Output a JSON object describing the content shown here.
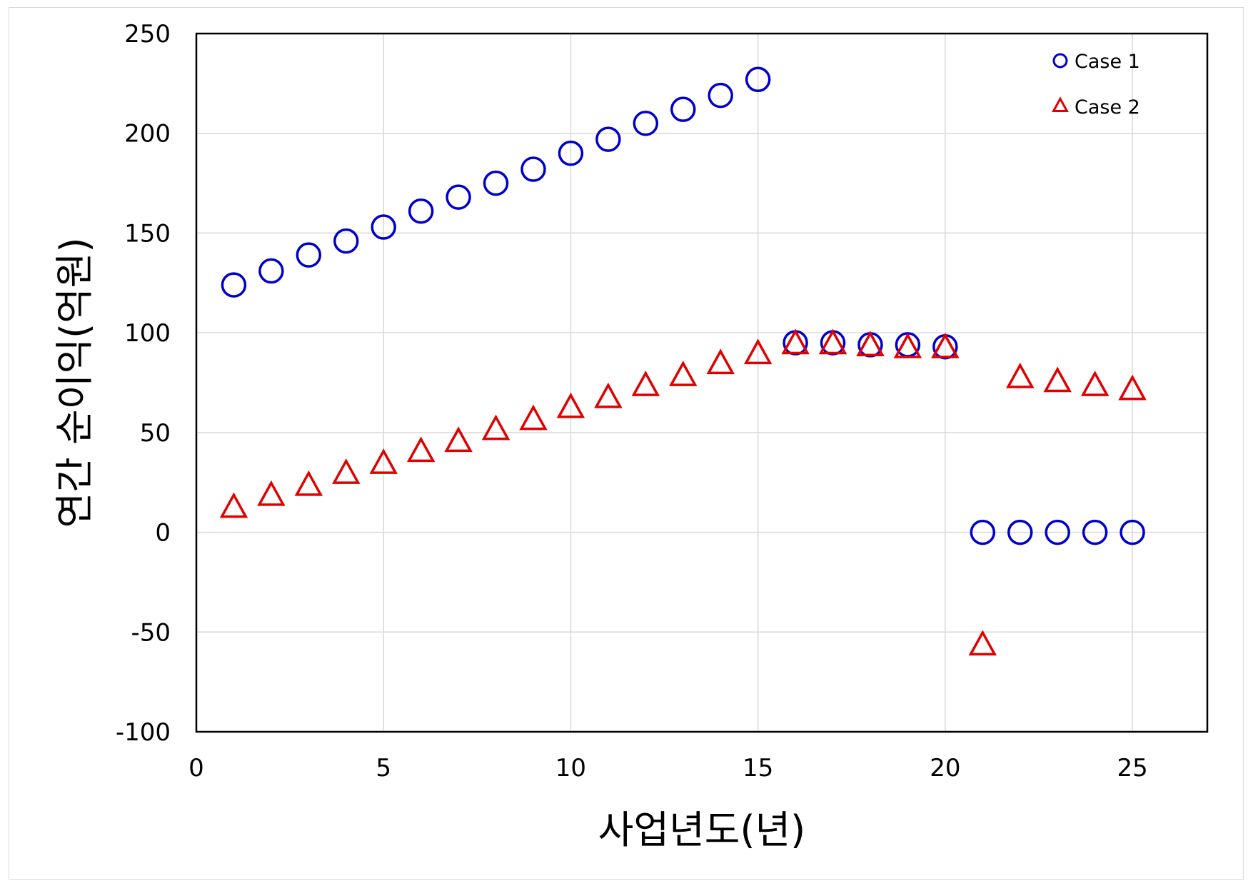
{
  "chart_data": {
    "type": "scatter",
    "title": "",
    "xlabel": "사업년도(년)",
    "ylabel": "연간 순이익(억원)",
    "xlim": [
      0,
      27
    ],
    "ylim": [
      -100,
      250
    ],
    "x_ticks": [
      0,
      5,
      10,
      15,
      20,
      25
    ],
    "y_ticks": [
      -100,
      -50,
      0,
      50,
      100,
      150,
      200,
      250
    ],
    "negative_tick_color": "#e00000",
    "grid": true,
    "legend_position": "top-right",
    "series": [
      {
        "name": "Case 1",
        "marker": "circle",
        "color": "#0000cc",
        "x": [
          1,
          2,
          3,
          4,
          5,
          6,
          7,
          8,
          9,
          10,
          11,
          12,
          13,
          14,
          15,
          16,
          17,
          18,
          19,
          20,
          21,
          22,
          23,
          24,
          25
        ],
        "y": [
          124,
          131,
          139,
          146,
          153,
          161,
          168,
          175,
          182,
          190,
          197,
          205,
          212,
          219,
          227,
          95,
          95,
          94,
          94,
          93,
          0,
          0,
          0,
          0,
          0
        ]
      },
      {
        "name": "Case 2",
        "marker": "triangle",
        "color": "#e00000",
        "x": [
          1,
          2,
          3,
          4,
          5,
          6,
          7,
          8,
          9,
          10,
          11,
          12,
          13,
          14,
          15,
          16,
          17,
          18,
          19,
          20,
          21,
          22,
          23,
          24,
          25
        ],
        "y": [
          12,
          18,
          23,
          29,
          34,
          40,
          45,
          51,
          56,
          62,
          67,
          73,
          78,
          84,
          89,
          94,
          94,
          93,
          92,
          92,
          -57,
          77,
          75,
          73,
          71
        ]
      }
    ]
  }
}
